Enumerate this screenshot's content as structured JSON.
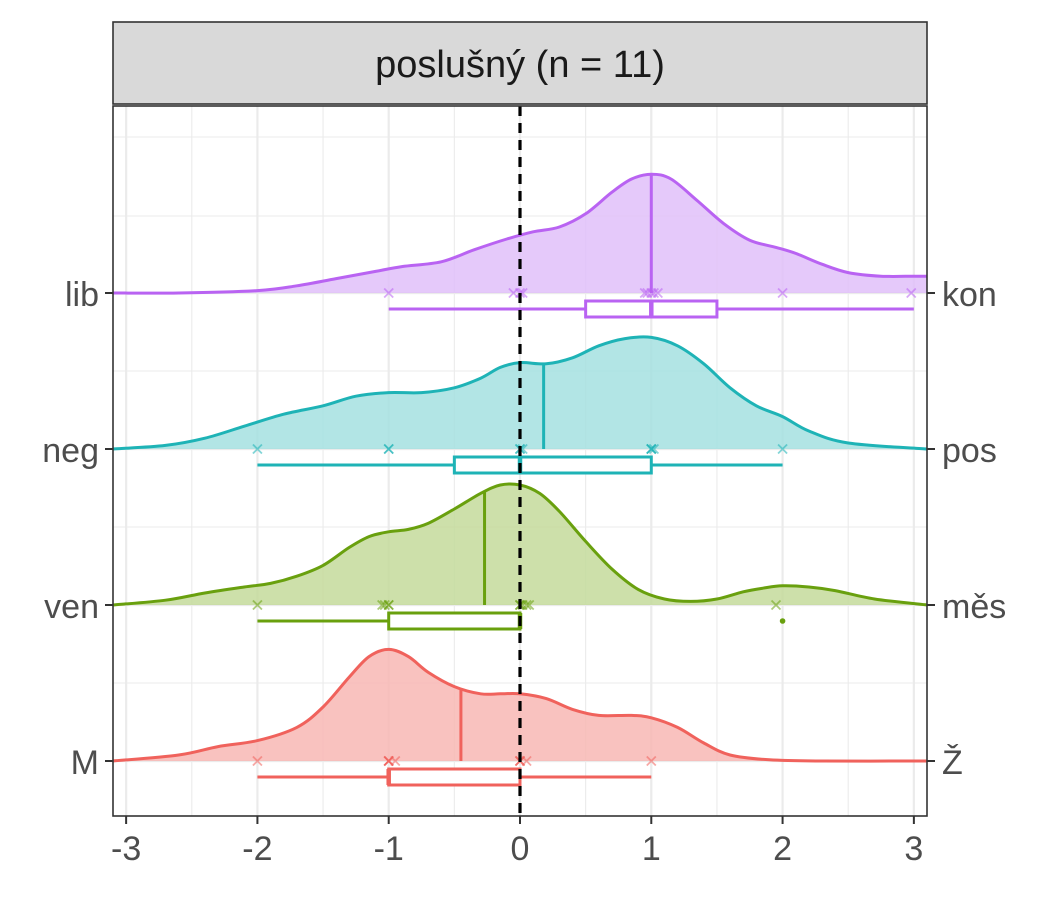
{
  "chart_data": {
    "type": "ridgeline-density-boxplot",
    "panel_title": "poslušný (n = 11)",
    "xlim": [
      -3.1,
      3.1
    ],
    "x_ticks": [
      -3,
      -2,
      -1,
      0,
      1,
      2,
      3
    ],
    "x_tick_labels": [
      "-3",
      "-2",
      "-1",
      "0",
      "1",
      "2",
      "3"
    ],
    "reference_line_x": 0,
    "grid": true,
    "series": [
      {
        "left_label": "M",
        "right_label": "Ž",
        "color": "#F0625C",
        "fill": "#F8B7B4",
        "points": [
          -2,
          -1,
          -1,
          -1,
          -1,
          -0.95,
          0,
          0,
          0,
          0.05,
          1
        ],
        "mean": -0.45,
        "box": {
          "whisker_low": -2,
          "q1": -1,
          "median": -1,
          "q3": 0,
          "whisker_high": 1
        },
        "outliers": [],
        "density": [
          [
            -3.1,
            0.0
          ],
          [
            -2.6,
            0.05
          ],
          [
            -2.3,
            0.12
          ],
          [
            -2.0,
            0.17
          ],
          [
            -1.7,
            0.28
          ],
          [
            -1.5,
            0.45
          ],
          [
            -1.3,
            0.7
          ],
          [
            -1.15,
            0.87
          ],
          [
            -1.0,
            0.93
          ],
          [
            -0.85,
            0.87
          ],
          [
            -0.7,
            0.74
          ],
          [
            -0.5,
            0.62
          ],
          [
            -0.3,
            0.56
          ],
          [
            -0.15,
            0.56
          ],
          [
            0.0,
            0.56
          ],
          [
            0.2,
            0.52
          ],
          [
            0.4,
            0.43
          ],
          [
            0.6,
            0.38
          ],
          [
            0.85,
            0.38
          ],
          [
            1.0,
            0.36
          ],
          [
            1.2,
            0.28
          ],
          [
            1.4,
            0.15
          ],
          [
            1.6,
            0.05
          ],
          [
            1.9,
            0.01
          ],
          [
            2.3,
            0.0
          ],
          [
            3.1,
            0.0
          ]
        ]
      },
      {
        "left_label": "ven",
        "right_label": "měs",
        "color": "#69A00E",
        "fill": "#C4DB9B",
        "points": [
          -2,
          -1.05,
          -1.03,
          -1,
          -1,
          0,
          0,
          0.02,
          0.05,
          0.07,
          1.95
        ],
        "mean": -0.27,
        "box": {
          "whisker_low": -2,
          "q1": -1,
          "median": 0,
          "q3": 0,
          "whisker_high": 0
        },
        "outliers": [
          2
        ],
        "density": [
          [
            -3.1,
            0.0
          ],
          [
            -2.7,
            0.04
          ],
          [
            -2.4,
            0.1
          ],
          [
            -2.1,
            0.15
          ],
          [
            -1.9,
            0.18
          ],
          [
            -1.7,
            0.24
          ],
          [
            -1.5,
            0.33
          ],
          [
            -1.3,
            0.48
          ],
          [
            -1.15,
            0.57
          ],
          [
            -1.0,
            0.61
          ],
          [
            -0.85,
            0.63
          ],
          [
            -0.7,
            0.68
          ],
          [
            -0.5,
            0.8
          ],
          [
            -0.3,
            0.93
          ],
          [
            -0.15,
            1.0
          ],
          [
            0.0,
            1.0
          ],
          [
            0.15,
            0.93
          ],
          [
            0.3,
            0.78
          ],
          [
            0.5,
            0.53
          ],
          [
            0.7,
            0.3
          ],
          [
            0.9,
            0.13
          ],
          [
            1.1,
            0.05
          ],
          [
            1.3,
            0.03
          ],
          [
            1.5,
            0.05
          ],
          [
            1.7,
            0.11
          ],
          [
            1.85,
            0.14
          ],
          [
            2.0,
            0.16
          ],
          [
            2.2,
            0.15
          ],
          [
            2.4,
            0.12
          ],
          [
            2.7,
            0.05
          ],
          [
            3.1,
            0.0
          ]
        ]
      },
      {
        "left_label": "neg",
        "right_label": "pos",
        "color": "#1EB3B6",
        "fill": "#A5E0E1",
        "points": [
          -2,
          -1,
          -1,
          0,
          0,
          0.02,
          1,
          1,
          1,
          1.02,
          2
        ],
        "mean": 0.18,
        "box": {
          "whisker_low": -2,
          "q1": -0.5,
          "median": 0,
          "q3": 1,
          "whisker_high": 2
        },
        "outliers": [],
        "density": [
          [
            -3.1,
            0.0
          ],
          [
            -2.7,
            0.03
          ],
          [
            -2.4,
            0.09
          ],
          [
            -2.1,
            0.19
          ],
          [
            -1.8,
            0.29
          ],
          [
            -1.5,
            0.36
          ],
          [
            -1.25,
            0.44
          ],
          [
            -1.0,
            0.47
          ],
          [
            -0.75,
            0.47
          ],
          [
            -0.5,
            0.51
          ],
          [
            -0.3,
            0.59
          ],
          [
            -0.15,
            0.68
          ],
          [
            0.0,
            0.72
          ],
          [
            0.2,
            0.71
          ],
          [
            0.4,
            0.76
          ],
          [
            0.6,
            0.86
          ],
          [
            0.8,
            0.92
          ],
          [
            1.0,
            0.93
          ],
          [
            1.2,
            0.86
          ],
          [
            1.4,
            0.71
          ],
          [
            1.6,
            0.51
          ],
          [
            1.8,
            0.36
          ],
          [
            2.0,
            0.27
          ],
          [
            2.2,
            0.15
          ],
          [
            2.5,
            0.05
          ],
          [
            3.1,
            0.0
          ]
        ]
      },
      {
        "left_label": "lib",
        "right_label": "kon",
        "color": "#B963F2",
        "fill": "#E0BFF9",
        "points": [
          -1,
          -0.05,
          0,
          0.02,
          0.95,
          0.97,
          1,
          1.02,
          1.05,
          2,
          2.98
        ],
        "mean": 1.0,
        "box": {
          "whisker_low": -1,
          "q1": 0.5,
          "median": 1,
          "q3": 1.5,
          "whisker_high": 3
        },
        "outliers": [],
        "density": [
          [
            -3.1,
            0.0
          ],
          [
            -2.6,
            0.0
          ],
          [
            -2.0,
            0.02
          ],
          [
            -1.7,
            0.06
          ],
          [
            -1.4,
            0.12
          ],
          [
            -1.1,
            0.18
          ],
          [
            -0.9,
            0.22
          ],
          [
            -0.6,
            0.26
          ],
          [
            -0.35,
            0.36
          ],
          [
            -0.1,
            0.45
          ],
          [
            0.1,
            0.51
          ],
          [
            0.3,
            0.55
          ],
          [
            0.5,
            0.66
          ],
          [
            0.7,
            0.84
          ],
          [
            0.85,
            0.95
          ],
          [
            1.0,
            0.99
          ],
          [
            1.15,
            0.95
          ],
          [
            1.35,
            0.77
          ],
          [
            1.55,
            0.58
          ],
          [
            1.75,
            0.44
          ],
          [
            1.95,
            0.38
          ],
          [
            2.1,
            0.33
          ],
          [
            2.3,
            0.24
          ],
          [
            2.5,
            0.17
          ],
          [
            2.75,
            0.14
          ],
          [
            3.0,
            0.14
          ],
          [
            3.1,
            0.14
          ]
        ]
      }
    ]
  }
}
